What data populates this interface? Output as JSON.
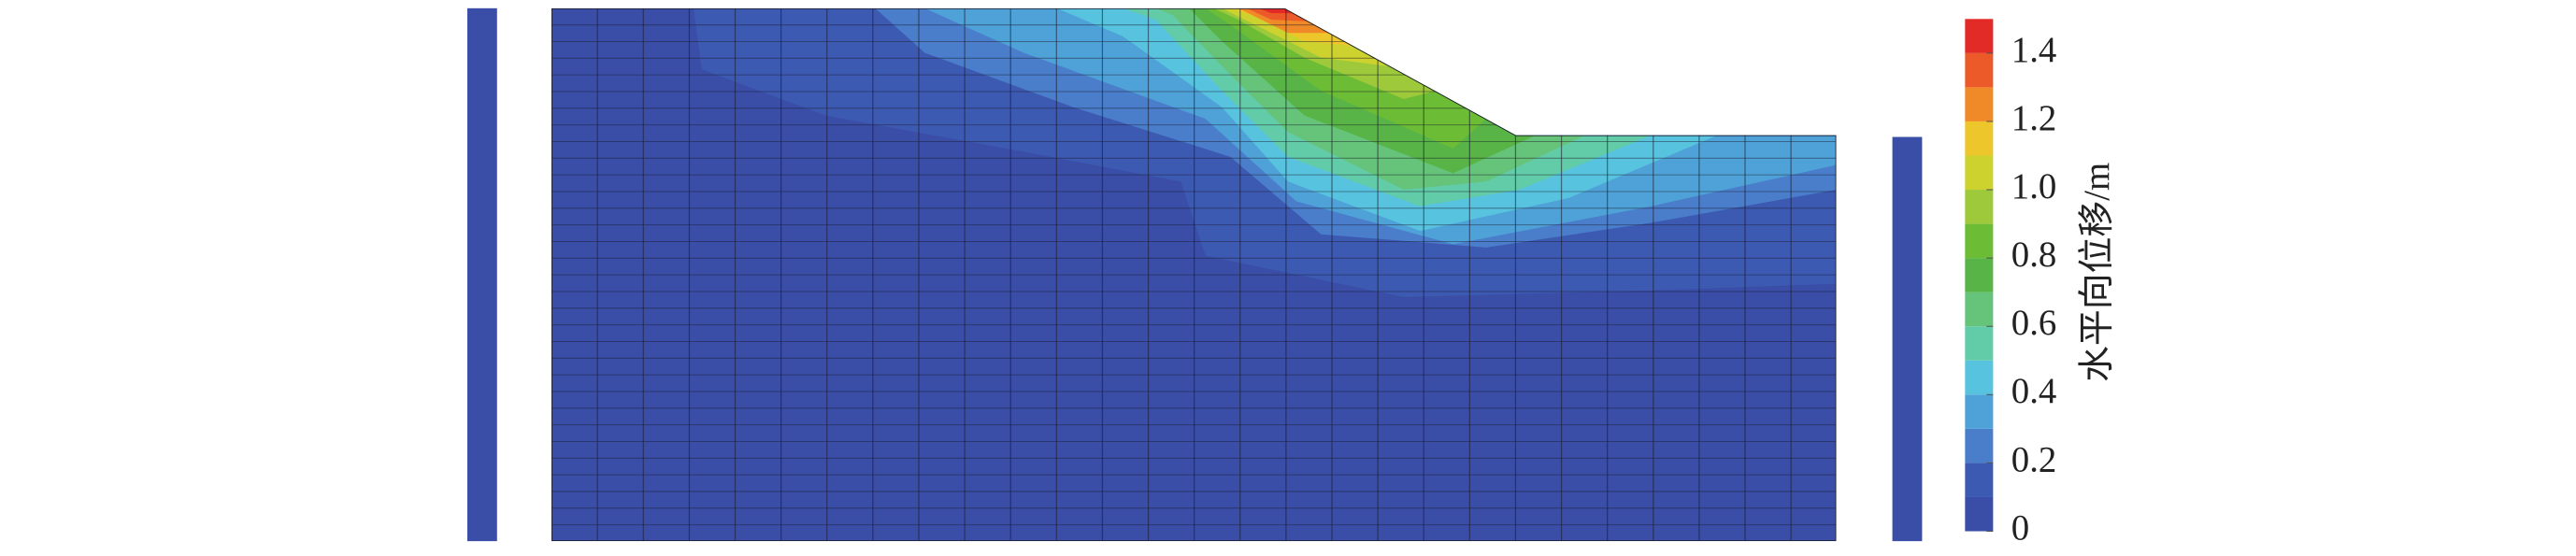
{
  "chart_data": {
    "type": "contour",
    "colorbar_label": "水平向位移/m",
    "levels": [
      0,
      0.1,
      0.2,
      0.3,
      0.4,
      0.5,
      0.6,
      0.7,
      0.8,
      0.9,
      1.0,
      1.1,
      1.2,
      1.3,
      1.4,
      1.5
    ],
    "colors": [
      "#3a4ea7",
      "#3d5ab3",
      "#4a7ecb",
      "#4fa2d8",
      "#57c3de",
      "#62cba8",
      "#66c37a",
      "#58b446",
      "#6cbd35",
      "#9dc93a",
      "#cdd22f",
      "#ecc62a",
      "#f08a28",
      "#eb5a28",
      "#e22b26"
    ],
    "clim": [
      0,
      1.5
    ],
    "cticks": [
      0,
      0.2,
      0.4,
      0.6,
      0.8,
      {
        "value": 1,
        "label": "1.0"
      },
      1.2,
      1.4
    ]
  }
}
